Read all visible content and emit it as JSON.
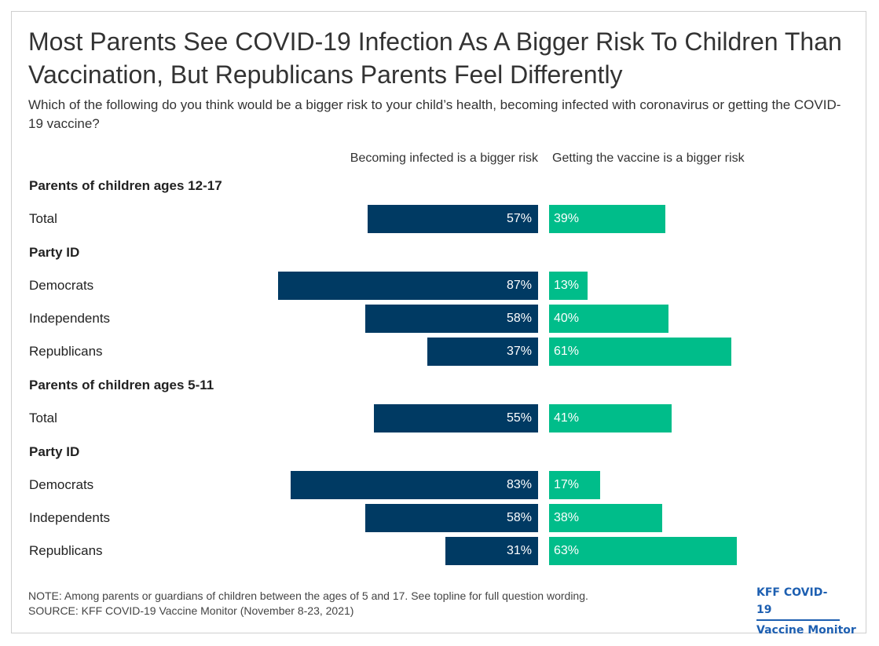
{
  "title": "Most Parents See COVID-19 Infection As A Bigger Risk To Children Than Vaccination, But Republicans Parents Feel Differently",
  "subtitle": "Which of the following do you think would be a bigger risk to your child’s health, becoming infected with coronavirus or getting the COVID-19 vaccine?",
  "note": "NOTE: Among parents or guardians of children between the ages of 5 and 17. See topline for full question wording.",
  "source": "SOURCE: KFF COVID-19 Vaccine Monitor (November 8-23, 2021)",
  "brand": {
    "line1": "KFF COVID-19",
    "line2": "Vaccine Monitor"
  },
  "colors": {
    "infected": "#003a63",
    "vaccine": "#00bd8a",
    "brand": "#1d5fb1"
  },
  "chart_data": {
    "type": "bar",
    "orientation": "horizontal-diverging",
    "series": [
      {
        "name": "Becoming infected is a bigger risk",
        "color": "#003a63"
      },
      {
        "name": "Getting the vaccine is a bigger risk",
        "color": "#00bd8a"
      }
    ],
    "rows": [
      {
        "kind": "group",
        "label": "Parents of children ages 12-17"
      },
      {
        "kind": "data",
        "label": "Total",
        "infected": 57,
        "vaccine": 39
      },
      {
        "kind": "group",
        "label": "Party ID"
      },
      {
        "kind": "data",
        "label": "Democrats",
        "infected": 87,
        "vaccine": 13
      },
      {
        "kind": "data",
        "label": "Independents",
        "infected": 58,
        "vaccine": 40
      },
      {
        "kind": "data",
        "label": "Republicans",
        "infected": 37,
        "vaccine": 61
      },
      {
        "kind": "group",
        "label": "Parents of children ages 5-11"
      },
      {
        "kind": "data",
        "label": "Total",
        "infected": 55,
        "vaccine": 41
      },
      {
        "kind": "group",
        "label": "Party ID"
      },
      {
        "kind": "data",
        "label": "Democrats",
        "infected": 83,
        "vaccine": 17
      },
      {
        "kind": "data",
        "label": "Independents",
        "infected": 58,
        "vaccine": 38
      },
      {
        "kind": "data",
        "label": "Republicans",
        "infected": 31,
        "vaccine": 63
      }
    ],
    "value_suffix": "%",
    "xlim": [
      0,
      100
    ]
  }
}
